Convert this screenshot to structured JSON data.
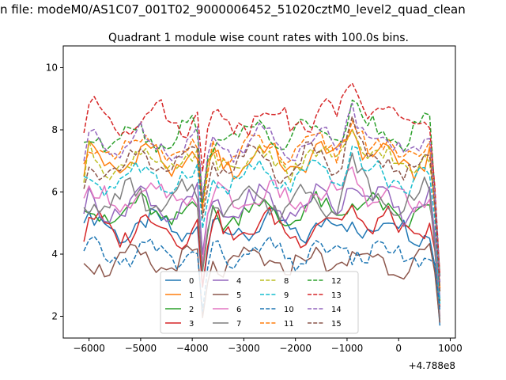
{
  "chart_data": {
    "type": "line",
    "suptitle": "n file: modeM0/AS1C07_001T02_9000006452_51020cztM0_level2_quad_clean",
    "title": "Quadrant 1 module wise count rates with 100.0s bins.",
    "xlabel": "",
    "ylabel": "",
    "x_offset_label": "+4.788e8",
    "xlim": [
      -6500,
      1100
    ],
    "ylim": [
      1.3,
      10.7
    ],
    "xticks": [
      -6000,
      -5000,
      -4000,
      -3000,
      -2000,
      -1000,
      0,
      1000
    ],
    "xtick_labels": [
      "−6000",
      "−5000",
      "−4000",
      "−3000",
      "−2000",
      "−1000",
      "0",
      "1000"
    ],
    "yticks": [
      2,
      4,
      6,
      8,
      10
    ],
    "ytick_labels": [
      "2",
      "4",
      "6",
      "8",
      "10"
    ],
    "grid": false,
    "legend_position": "lower-center",
    "x_start": -6100,
    "x_step": 100,
    "series": [
      {
        "name": "0",
        "color": "#1f77b4",
        "dashed": false,
        "start": 5.0,
        "base": 4.85,
        "amp": 0.35,
        "spike": 0.2,
        "end": 1.7,
        "phase": 0.3
      },
      {
        "name": "1",
        "color": "#ff7f0e",
        "dashed": false,
        "start": 6.5,
        "base": 7.05,
        "amp": 0.45,
        "spike": 1.5,
        "end": 2.9,
        "phase": 1.1
      },
      {
        "name": "2",
        "color": "#2ca02c",
        "dashed": false,
        "start": 5.4,
        "base": 5.35,
        "amp": 0.4,
        "spike": 0.6,
        "end": 2.5,
        "phase": 2.0
      },
      {
        "name": "3",
        "color": "#d62728",
        "dashed": false,
        "start": 4.4,
        "base": 4.85,
        "amp": 0.4,
        "spike": 1.0,
        "end": 2.3,
        "phase": 0.7
      },
      {
        "name": "4",
        "color": "#9467bd",
        "dashed": false,
        "start": 5.3,
        "base": 5.6,
        "amp": 0.45,
        "spike": 1.2,
        "end": 2.6,
        "phase": 1.7
      },
      {
        "name": "5",
        "color": "#8c564b",
        "dashed": false,
        "start": 3.7,
        "base": 3.75,
        "amp": 0.3,
        "spike": 0.25,
        "end": 1.8,
        "phase": 2.6
      },
      {
        "name": "6",
        "color": "#e377c2",
        "dashed": false,
        "start": 5.8,
        "base": 5.8,
        "amp": 0.3,
        "spike": 1.0,
        "end": 2.0,
        "phase": 0.2
      },
      {
        "name": "7",
        "color": "#7f7f7f",
        "dashed": false,
        "start": 5.5,
        "base": 5.75,
        "amp": 0.45,
        "spike": 1.2,
        "end": 1.9,
        "phase": 3.1
      },
      {
        "name": "8",
        "color": "#bcbd22",
        "dashed": true,
        "start": 6.3,
        "base": 7.0,
        "amp": 0.4,
        "spike": 1.2,
        "end": 2.8,
        "phase": 1.4
      },
      {
        "name": "9",
        "color": "#17becf",
        "dashed": true,
        "start": 6.5,
        "base": 6.45,
        "amp": 0.35,
        "spike": 1.0,
        "end": 2.4,
        "phase": 2.3
      },
      {
        "name": "10",
        "color": "#1f77b4",
        "dashed": true,
        "start": 4.1,
        "base": 4.0,
        "amp": 0.3,
        "spike": 0.2,
        "end": 2.2,
        "phase": 0.9
      },
      {
        "name": "11",
        "color": "#ff7f0e",
        "dashed": true,
        "start": 6.9,
        "base": 7.35,
        "amp": 0.35,
        "spike": 1.2,
        "end": 2.9,
        "phase": 1.9
      },
      {
        "name": "12",
        "color": "#2ca02c",
        "dashed": true,
        "start": 7.6,
        "base": 7.85,
        "amp": 0.4,
        "spike": 1.0,
        "end": 3.3,
        "phase": 2.8
      },
      {
        "name": "13",
        "color": "#d62728",
        "dashed": true,
        "start": 7.9,
        "base": 8.4,
        "amp": 0.4,
        "spike": 1.6,
        "end": 3.3,
        "phase": 0.4
      },
      {
        "name": "14",
        "color": "#9467bd",
        "dashed": true,
        "start": 7.0,
        "base": 7.6,
        "amp": 0.4,
        "spike": 1.4,
        "end": 3.1,
        "phase": 1.6
      },
      {
        "name": "15",
        "color": "#8c564b",
        "dashed": true,
        "start": 6.1,
        "base": 6.95,
        "amp": 0.45,
        "spike": 1.6,
        "end": 2.8,
        "phase": 2.4
      }
    ]
  }
}
